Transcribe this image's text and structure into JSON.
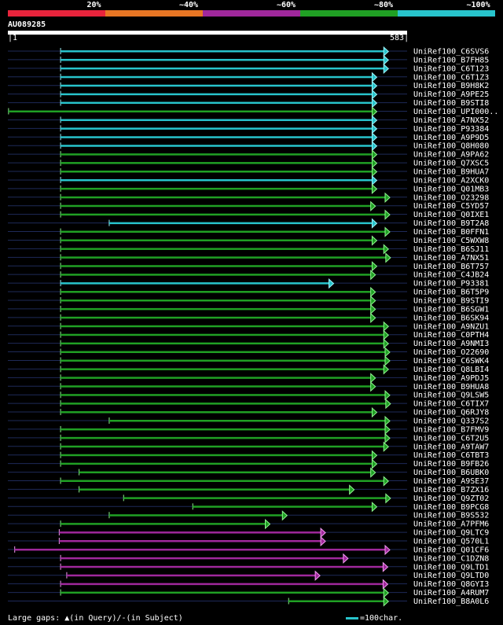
{
  "legend": {
    "segments": [
      {
        "label": "20%",
        "color": "#e8243c"
      },
      {
        "label": "~40%",
        "color": "#e87624"
      },
      {
        "label": "~60%",
        "color": "#a0289c"
      },
      {
        "label": "~80%",
        "color": "#20a024"
      },
      {
        "label": "~100%",
        "color": "#28c4cc"
      }
    ]
  },
  "query": {
    "id": "AU089285",
    "start": "1",
    "end": "583",
    "length": 583
  },
  "hits": [
    {
      "name": "UniRef100_C6SVS6",
      "start": 77,
      "end": 550,
      "color": "cyan"
    },
    {
      "name": "UniRef100_B7FH85",
      "start": 77,
      "end": 550,
      "color": "cyan"
    },
    {
      "name": "UniRef100_C6T123",
      "start": 77,
      "end": 550,
      "color": "cyan"
    },
    {
      "name": "UniRef100_C6T1Z3",
      "start": 77,
      "end": 533,
      "color": "cyan"
    },
    {
      "name": "UniRef100_B9H8K2",
      "start": 77,
      "end": 533,
      "color": "cyan"
    },
    {
      "name": "UniRef100_A9PE25",
      "start": 77,
      "end": 533,
      "color": "cyan"
    },
    {
      "name": "UniRef100_B9STI8",
      "start": 77,
      "end": 533,
      "color": "cyan"
    },
    {
      "name": "UniRef100_UPI000..",
      "start": 1,
      "end": 533,
      "color": "green"
    },
    {
      "name": "UniRef100_A7NX52",
      "start": 77,
      "end": 533,
      "color": "cyan"
    },
    {
      "name": "UniRef100_P93384",
      "start": 77,
      "end": 533,
      "color": "cyan"
    },
    {
      "name": "UniRef100_A9P9D5",
      "start": 77,
      "end": 533,
      "color": "cyan"
    },
    {
      "name": "UniRef100_Q8H080",
      "start": 77,
      "end": 533,
      "color": "cyan"
    },
    {
      "name": "UniRef100_A9PA62",
      "start": 77,
      "end": 533,
      "color": "green"
    },
    {
      "name": "UniRef100_Q7XSC5",
      "start": 77,
      "end": 533,
      "color": "green"
    },
    {
      "name": "UniRef100_B9HUA7",
      "start": 77,
      "end": 533,
      "color": "green"
    },
    {
      "name": "UniRef100_A2XCK0",
      "start": 77,
      "end": 533,
      "color": "cyan"
    },
    {
      "name": "UniRef100_Q01MB3",
      "start": 77,
      "end": 533,
      "color": "green"
    },
    {
      "name": "UniRef100_O23298",
      "start": 77,
      "end": 552,
      "color": "green"
    },
    {
      "name": "UniRef100_C5YD57",
      "start": 77,
      "end": 531,
      "color": "green"
    },
    {
      "name": "UniRef100_Q0IXE1",
      "start": 77,
      "end": 552,
      "color": "green"
    },
    {
      "name": "UniRef100_B9T2A8",
      "start": 148,
      "end": 533,
      "color": "cyan"
    },
    {
      "name": "UniRef100_B0FFN1",
      "start": 77,
      "end": 552,
      "color": "green"
    },
    {
      "name": "UniRef100_C5WXW8",
      "start": 77,
      "end": 533,
      "color": "green"
    },
    {
      "name": "UniRef100_B6SJ11",
      "start": 77,
      "end": 550,
      "color": "green"
    },
    {
      "name": "UniRef100_A7NX51",
      "start": 77,
      "end": 553,
      "color": "green"
    },
    {
      "name": "UniRef100_B6T757",
      "start": 77,
      "end": 533,
      "color": "green"
    },
    {
      "name": "UniRef100_C4JB24",
      "start": 77,
      "end": 531,
      "color": "green"
    },
    {
      "name": "UniRef100_P93381",
      "start": 77,
      "end": 470,
      "color": "cyan"
    },
    {
      "name": "UniRef100_B6T5P9",
      "start": 77,
      "end": 531,
      "color": "green"
    },
    {
      "name": "UniRef100_B9STI9",
      "start": 77,
      "end": 531,
      "color": "green"
    },
    {
      "name": "UniRef100_B6SGW1",
      "start": 77,
      "end": 531,
      "color": "green"
    },
    {
      "name": "UniRef100_B6SK94",
      "start": 77,
      "end": 531,
      "color": "green"
    },
    {
      "name": "UniRef100_A9NZU1",
      "start": 77,
      "end": 550,
      "color": "green"
    },
    {
      "name": "UniRef100_C0PTH4",
      "start": 77,
      "end": 550,
      "color": "green"
    },
    {
      "name": "UniRef100_A9NMI3",
      "start": 77,
      "end": 550,
      "color": "green"
    },
    {
      "name": "UniRef100_O22690",
      "start": 77,
      "end": 552,
      "color": "green"
    },
    {
      "name": "UniRef100_C6SWK4",
      "start": 77,
      "end": 552,
      "color": "green"
    },
    {
      "name": "UniRef100_Q8LBI4",
      "start": 77,
      "end": 550,
      "color": "green"
    },
    {
      "name": "UniRef100_A9PDJ5",
      "start": 77,
      "end": 531,
      "color": "green"
    },
    {
      "name": "UniRef100_B9HUA8",
      "start": 77,
      "end": 531,
      "color": "green"
    },
    {
      "name": "UniRef100_Q9LSW5",
      "start": 77,
      "end": 552,
      "color": "green"
    },
    {
      "name": "UniRef100_C6TIX7",
      "start": 77,
      "end": 553,
      "color": "green"
    },
    {
      "name": "UniRef100_Q6RJY8",
      "start": 77,
      "end": 533,
      "color": "green"
    },
    {
      "name": "UniRef100_Q337S2",
      "start": 148,
      "end": 552,
      "color": "green"
    },
    {
      "name": "UniRef100_B7FMV9",
      "start": 77,
      "end": 552,
      "color": "green"
    },
    {
      "name": "UniRef100_C6T2U5",
      "start": 77,
      "end": 552,
      "color": "green"
    },
    {
      "name": "UniRef100_A9TAW7",
      "start": 77,
      "end": 550,
      "color": "green"
    },
    {
      "name": "UniRef100_C6TBT3",
      "start": 77,
      "end": 533,
      "color": "green"
    },
    {
      "name": "UniRef100_B9FB26",
      "start": 77,
      "end": 533,
      "color": "green"
    },
    {
      "name": "UniRef100_B6UBK0",
      "start": 104,
      "end": 531,
      "color": "green"
    },
    {
      "name": "UniRef100_A9SE37",
      "start": 77,
      "end": 550,
      "color": "green"
    },
    {
      "name": "UniRef100_B7ZX16",
      "start": 104,
      "end": 500,
      "color": "green"
    },
    {
      "name": "UniRef100_Q9ZT02",
      "start": 169,
      "end": 553,
      "color": "green"
    },
    {
      "name": "UniRef100_B9PCG8",
      "start": 270,
      "end": 533,
      "color": "green"
    },
    {
      "name": "UniRef100_B9S532",
      "start": 148,
      "end": 402,
      "color": "green"
    },
    {
      "name": "UniRef100_A7PFM6",
      "start": 77,
      "end": 377,
      "color": "green"
    },
    {
      "name": "UniRef100_Q9LTC9",
      "start": 75,
      "end": 458,
      "color": "purple"
    },
    {
      "name": "UniRef100_Q570L1",
      "start": 75,
      "end": 458,
      "color": "purple"
    },
    {
      "name": "UniRef100_Q01CF6",
      "start": 10,
      "end": 552,
      "color": "purple"
    },
    {
      "name": "UniRef100_C1DZN8",
      "start": 77,
      "end": 491,
      "color": "purple"
    },
    {
      "name": "UniRef100_Q9LTD1",
      "start": 77,
      "end": 549,
      "color": "purple"
    },
    {
      "name": "UniRef100_Q9LTD0",
      "start": 86,
      "end": 450,
      "color": "purple"
    },
    {
      "name": "UniRef100_Q8GYI3",
      "start": 77,
      "end": 549,
      "color": "purple"
    },
    {
      "name": "UniRef100_A4RUM7",
      "start": 77,
      "end": 550,
      "color": "green"
    },
    {
      "name": "UniRef100_B8A0L6",
      "start": 410,
      "end": 550,
      "color": "green"
    }
  ],
  "footer": {
    "gaps_label": "Large gaps: ",
    "gaps_query_text": "(in Query)/",
    "gaps_subject_text": "(in Subject)",
    "scale_text": "=100char."
  }
}
